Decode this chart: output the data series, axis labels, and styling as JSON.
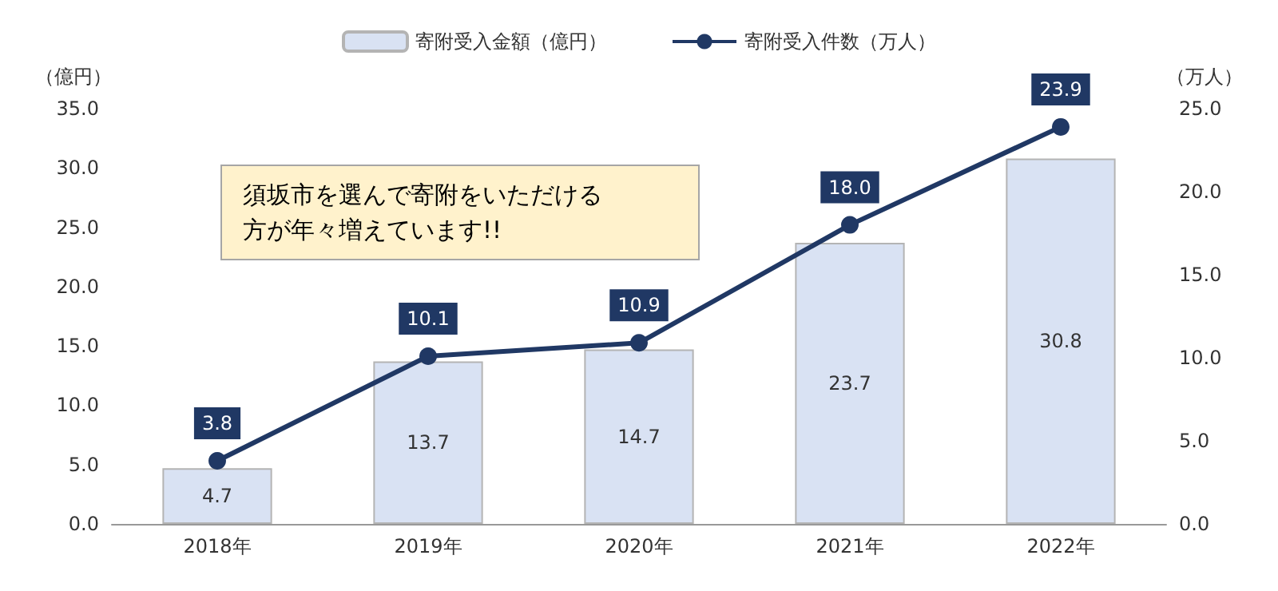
{
  "chart_data": {
    "type": "bar",
    "categories": [
      "2018年",
      "2019年",
      "2020年",
      "2021年",
      "2022年"
    ],
    "series": [
      {
        "name": "寄附受入金額（億円）",
        "color": "#d9e2f3",
        "values": [
          4.7,
          13.7,
          14.7,
          23.7,
          30.8
        ],
        "value_labels": [
          "4.7",
          "13.7",
          "14.7",
          "23.7",
          "30.8"
        ]
      },
      {
        "name": "寄附受入件数（万人）",
        "type": "line",
        "axis": "y2",
        "color": "#203864",
        "values": [
          3.8,
          10.1,
          10.9,
          18.0,
          23.9
        ],
        "value_labels": [
          "3.8",
          "10.1",
          "10.9",
          "18.0",
          "23.9"
        ]
      }
    ],
    "ylabel": "（億円）",
    "y2label": "（万人）",
    "ylim": [
      0,
      35
    ],
    "yticks": [
      {
        "value": 0,
        "label": "0.0"
      },
      {
        "value": 5,
        "label": "5.0"
      },
      {
        "value": 10,
        "label": "10.0"
      },
      {
        "value": 15,
        "label": "15.0"
      },
      {
        "value": 20,
        "label": "20.0"
      },
      {
        "value": 25,
        "label": "25.0"
      },
      {
        "value": 30,
        "label": "30.0"
      },
      {
        "value": 35,
        "label": "35.0"
      }
    ],
    "y2lim": [
      0,
      25
    ],
    "y2ticks": [
      {
        "value": 0,
        "label": "0.0"
      },
      {
        "value": 5,
        "label": "5.0"
      },
      {
        "value": 10,
        "label": "10.0"
      },
      {
        "value": 15,
        "label": "15.0"
      },
      {
        "value": 20,
        "label": "20.0"
      },
      {
        "value": 25,
        "label": "25.0"
      }
    ],
    "annotations": [
      "須坂市を選んで寄附をいただける方が年々増えています!!"
    ],
    "grid": false,
    "legend": "top",
    "marker": "circle",
    "line_style": "solid"
  }
}
